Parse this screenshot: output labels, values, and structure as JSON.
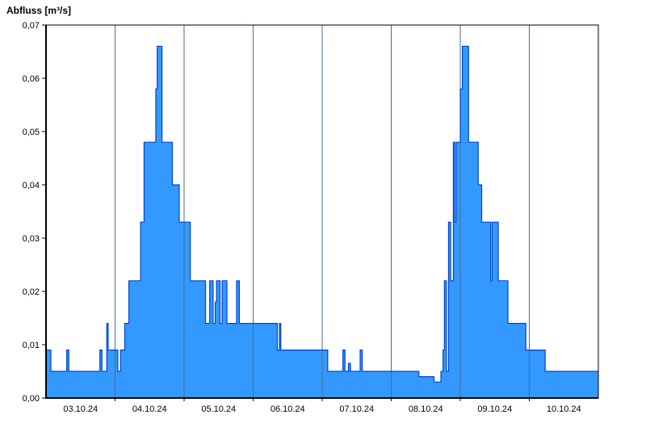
{
  "chart_data": {
    "type": "area",
    "step": "post",
    "title": "Abfluss [m³/s]",
    "ylabel": "Abfluss [m³/s]",
    "legend": "none",
    "grid": "vertical-only",
    "xlim": [
      0,
      8
    ],
    "ylim": [
      0,
      0.07
    ],
    "x_axis": {
      "tick_positions": [
        0.5,
        1.5,
        2.5,
        3.5,
        4.5,
        5.5,
        6.5,
        7.5
      ],
      "tick_labels": [
        "03.10.24",
        "04.10.24",
        "05.10.24",
        "06.10.24",
        "07.10.24",
        "08.10.24",
        "09.10.24",
        "10.10.24"
      ],
      "gridline_positions": [
        1,
        2,
        3,
        4,
        5,
        6,
        7
      ]
    },
    "y_axis": {
      "tick_values": [
        0,
        0.01,
        0.02,
        0.03,
        0.04,
        0.05,
        0.06,
        0.07
      ],
      "tick_labels": [
        "0,00",
        "0,01",
        "0,02",
        "0,03",
        "0,04",
        "0,05",
        "0,06",
        "0,07"
      ]
    },
    "colors": {
      "fill": "#3399FF",
      "line": "#0044CC",
      "grid": "#4A6E8F",
      "axis": "#000000",
      "background": "#FFFFFF"
    },
    "series": [
      {
        "name": "Abfluss",
        "unit": "m³/s",
        "points": [
          [
            0.0,
            0.009
          ],
          [
            0.07,
            0.005
          ],
          [
            0.3,
            0.009
          ],
          [
            0.33,
            0.005
          ],
          [
            0.78,
            0.009
          ],
          [
            0.81,
            0.005
          ],
          [
            0.88,
            0.014
          ],
          [
            0.9,
            0.009
          ],
          [
            1.04,
            0.005
          ],
          [
            1.08,
            0.009
          ],
          [
            1.14,
            0.014
          ],
          [
            1.2,
            0.022
          ],
          [
            1.37,
            0.033
          ],
          [
            1.42,
            0.048
          ],
          [
            1.59,
            0.058
          ],
          [
            1.61,
            0.066
          ],
          [
            1.68,
            0.048
          ],
          [
            1.83,
            0.04
          ],
          [
            1.93,
            0.033
          ],
          [
            2.09,
            0.022
          ],
          [
            2.31,
            0.014
          ],
          [
            2.37,
            0.022
          ],
          [
            2.42,
            0.014
          ],
          [
            2.45,
            0.018
          ],
          [
            2.47,
            0.022
          ],
          [
            2.52,
            0.014
          ],
          [
            2.55,
            0.022
          ],
          [
            2.62,
            0.014
          ],
          [
            2.76,
            0.022
          ],
          [
            2.8,
            0.014
          ],
          [
            3.35,
            0.009
          ],
          [
            3.38,
            0.014
          ],
          [
            3.4,
            0.009
          ],
          [
            4.08,
            0.005
          ],
          [
            4.3,
            0.009
          ],
          [
            4.33,
            0.005
          ],
          [
            4.38,
            0.0065
          ],
          [
            4.41,
            0.005
          ],
          [
            4.55,
            0.009
          ],
          [
            4.58,
            0.005
          ],
          [
            5.4,
            0.004
          ],
          [
            5.62,
            0.003
          ],
          [
            5.72,
            0.005
          ],
          [
            5.75,
            0.009
          ],
          [
            5.77,
            0.022
          ],
          [
            5.8,
            0.005
          ],
          [
            5.83,
            0.033
          ],
          [
            5.86,
            0.022
          ],
          [
            5.9,
            0.048
          ],
          [
            5.92,
            0.033
          ],
          [
            5.94,
            0.048
          ],
          [
            6.0,
            0.058
          ],
          [
            6.03,
            0.066
          ],
          [
            6.12,
            0.048
          ],
          [
            6.26,
            0.04
          ],
          [
            6.31,
            0.033
          ],
          [
            6.44,
            0.022
          ],
          [
            6.46,
            0.033
          ],
          [
            6.55,
            0.022
          ],
          [
            6.69,
            0.014
          ],
          [
            6.95,
            0.009
          ],
          [
            7.23,
            0.005
          ]
        ]
      }
    ]
  }
}
